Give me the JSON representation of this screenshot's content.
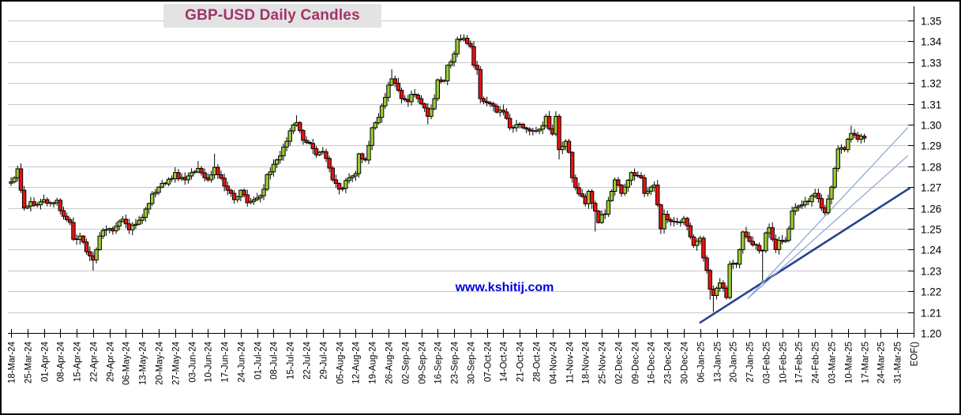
{
  "title": {
    "text": "GBP-USD Daily Candles"
  },
  "watermark": {
    "text": "www.kshitij.com"
  },
  "colors": {
    "title_text": "#A23368",
    "title_bg": "#E3E3E3",
    "watermark_text": "#0000DD",
    "grid": "#C8C8C8",
    "axis": "#000000",
    "bull_fill": "#9ACD32",
    "bear_fill": "#EE1111",
    "candle_border": "#000000",
    "trend_thick": "#27418F",
    "trend_thin": "#8AA3CF"
  },
  "chart_data": {
    "type": "candlestick",
    "title": "GBP-USD Daily Candles",
    "ylabel": "",
    "xlabel": "",
    "grid": "horizontal",
    "y_axis_side": "right",
    "y_range": [
      1.2,
      1.35
    ],
    "y_tick_step": 0.01,
    "y_tick_labels": [
      "1.35",
      "1.34",
      "1.33",
      "1.32",
      "1.31",
      "1.30",
      "1.29",
      "1.28",
      "1.27",
      "1.26",
      "1.25",
      "1.24",
      "1.23",
      "1.22",
      "1.21",
      "1.20"
    ],
    "x_tick_labels": [
      "18-Mar-24",
      "25-Mar-24",
      "01-Apr-24",
      "08-Apr-24",
      "15-Apr-24",
      "22-Apr-24",
      "29-Apr-24",
      "06-May-24",
      "13-May-24",
      "20-May-24",
      "27-May-24",
      "03-Jun-24",
      "10-Jun-24",
      "17-Jun-24",
      "24-Jun-24",
      "01-Jul-24",
      "08-Jul-24",
      "15-Jul-24",
      "22-Jul-24",
      "29-Jul-24",
      "05-Aug-24",
      "12-Aug-24",
      "19-Aug-24",
      "26-Aug-24",
      "02-Sep-24",
      "09-Sep-24",
      "16-Sep-24",
      "23-Sep-24",
      "30-Sep-24",
      "07-Oct-24",
      "14-Oct-24",
      "21-Oct-24",
      "28-Oct-24",
      "04-Nov-24",
      "11-Nov-24",
      "18-Nov-24",
      "25-Nov-24",
      "02-Dec-24",
      "09-Dec-24",
      "16-Dec-24",
      "23-Dec-24",
      "30-Dec-24",
      "06-Jan-25",
      "13-Jan-25",
      "20-Jan-25",
      "27-Jan-25",
      "03-Feb-25",
      "10-Feb-25",
      "17-Feb-25",
      "24-Feb-25",
      "03-Mar-25",
      "10-Mar-25",
      "17-Mar-25",
      "24-Mar-25",
      "31-Mar-25",
      "EOF()"
    ],
    "days_per_week": 5,
    "last_day": 260,
    "price_anchors": [
      [
        0,
        1.2725
      ],
      [
        1,
        1.2745
      ],
      [
        2,
        1.2788
      ],
      [
        3,
        1.2685
      ],
      [
        4,
        1.26
      ],
      [
        6,
        1.263
      ],
      [
        8,
        1.2615
      ],
      [
        10,
        1.264
      ],
      [
        12,
        1.262
      ],
      [
        14,
        1.2637
      ],
      [
        16,
        1.256
      ],
      [
        18,
        1.253
      ],
      [
        19,
        1.245
      ],
      [
        21,
        1.2465
      ],
      [
        23,
        1.239
      ],
      [
        24,
        1.237
      ],
      [
        25,
        1.235
      ],
      [
        26,
        1.24
      ],
      [
        27,
        1.2465
      ],
      [
        29,
        1.2495
      ],
      [
        31,
        1.249
      ],
      [
        33,
        1.2535
      ],
      [
        34,
        1.2546
      ],
      [
        36,
        1.2495
      ],
      [
        38,
        1.2522
      ],
      [
        40,
        1.2555
      ],
      [
        41,
        1.2595
      ],
      [
        43,
        1.2667
      ],
      [
        45,
        1.27
      ],
      [
        47,
        1.2715
      ],
      [
        49,
        1.274
      ],
      [
        50,
        1.277
      ],
      [
        51,
        1.274
      ],
      [
        53,
        1.2735
      ],
      [
        55,
        1.277
      ],
      [
        57,
        1.279
      ],
      [
        59,
        1.2745
      ],
      [
        60,
        1.2735
      ],
      [
        62,
        1.2795
      ],
      [
        63,
        1.276
      ],
      [
        65,
        1.2705
      ],
      [
        66,
        1.2685
      ],
      [
        68,
        1.264
      ],
      [
        70,
        1.2685
      ],
      [
        72,
        1.2625
      ],
      [
        74,
        1.264
      ],
      [
        75,
        1.2648
      ],
      [
        77,
        1.269
      ],
      [
        78,
        1.276
      ],
      [
        80,
        1.281
      ],
      [
        82,
        1.285
      ],
      [
        84,
        1.292
      ],
      [
        85,
        1.297
      ],
      [
        87,
        1.301
      ],
      [
        89,
        1.2925
      ],
      [
        91,
        1.291
      ],
      [
        93,
        1.2855
      ],
      [
        95,
        1.287
      ],
      [
        96,
        1.2838
      ],
      [
        98,
        1.2735
      ],
      [
        100,
        1.269
      ],
      [
        101,
        1.2695
      ],
      [
        103,
        1.2745
      ],
      [
        105,
        1.2765
      ],
      [
        106,
        1.286
      ],
      [
        108,
        1.283
      ],
      [
        110,
        1.2985
      ],
      [
        112,
        1.3035
      ],
      [
        113,
        1.309
      ],
      [
        115,
        1.319
      ],
      [
        116,
        1.322
      ],
      [
        118,
        1.3165
      ],
      [
        119,
        1.3125
      ],
      [
        121,
        1.311
      ],
      [
        122,
        1.3145
      ],
      [
        124,
        1.3125
      ],
      [
        126,
        1.308
      ],
      [
        127,
        1.304
      ],
      [
        129,
        1.3125
      ],
      [
        130,
        1.3215
      ],
      [
        132,
        1.321
      ],
      [
        133,
        1.3285
      ],
      [
        135,
        1.334
      ],
      [
        136,
        1.341
      ],
      [
        138,
        1.3415
      ],
      [
        139,
        1.339
      ],
      [
        140,
        1.3375
      ],
      [
        141,
        1.3285
      ],
      [
        142,
        1.3265
      ],
      [
        143,
        1.3125
      ],
      [
        145,
        1.3105
      ],
      [
        146,
        1.31
      ],
      [
        148,
        1.306
      ],
      [
        149,
        1.307
      ],
      [
        151,
        1.303
      ],
      [
        152,
        1.2985
      ],
      [
        154,
        1.3
      ],
      [
        156,
        1.2985
      ],
      [
        158,
        1.297
      ],
      [
        160,
        1.297
      ],
      [
        162,
        1.2995
      ],
      [
        163,
        1.304
      ],
      [
        164,
        1.298
      ],
      [
        165,
        1.2955
      ],
      [
        166,
        1.304
      ],
      [
        167,
        1.288
      ],
      [
        168,
        1.2895
      ],
      [
        169,
        1.292
      ],
      [
        170,
        1.2867
      ],
      [
        171,
        1.2745
      ],
      [
        173,
        1.2668
      ],
      [
        175,
        1.262
      ],
      [
        176,
        1.268
      ],
      [
        178,
        1.2585
      ],
      [
        179,
        1.253
      ],
      [
        180,
        1.2567
      ],
      [
        181,
        1.257
      ],
      [
        183,
        1.268
      ],
      [
        184,
        1.2735
      ],
      [
        186,
        1.267
      ],
      [
        187,
        1.27
      ],
      [
        189,
        1.277
      ],
      [
        190,
        1.2755
      ],
      [
        192,
        1.2745
      ],
      [
        193,
        1.267
      ],
      [
        195,
        1.27
      ],
      [
        196,
        1.271
      ],
      [
        197,
        1.2615
      ],
      [
        198,
        1.25
      ],
      [
        199,
        1.257
      ],
      [
        201,
        1.2535
      ],
      [
        203,
        1.253
      ],
      [
        205,
        1.255
      ],
      [
        206,
        1.2515
      ],
      [
        208,
        1.242
      ],
      [
        210,
        1.2455
      ],
      [
        211,
        1.236
      ],
      [
        212,
        1.23
      ],
      [
        213,
        1.221
      ],
      [
        214,
        1.218
      ],
      [
        215,
        1.2215
      ],
      [
        216,
        1.224
      ],
      [
        217,
        1.2215
      ],
      [
        218,
        1.217
      ],
      [
        219,
        1.233
      ],
      [
        221,
        1.233
      ],
      [
        222,
        1.24
      ],
      [
        223,
        1.2485
      ],
      [
        225,
        1.244
      ],
      [
        227,
        1.242
      ],
      [
        228,
        1.2395
      ],
      [
        229,
        1.2395
      ],
      [
        230,
        1.248
      ],
      [
        231,
        1.2505
      ],
      [
        232,
        1.245
      ],
      [
        233,
        1.24
      ],
      [
        234,
        1.2445
      ],
      [
        236,
        1.2445
      ],
      [
        237,
        1.25
      ],
      [
        238,
        1.2585
      ],
      [
        240,
        1.261
      ],
      [
        241,
        1.2615
      ],
      [
        243,
        1.263
      ],
      [
        245,
        1.267
      ],
      [
        246,
        1.2645
      ],
      [
        247,
        1.26
      ],
      [
        248,
        1.2577
      ],
      [
        250,
        1.27
      ],
      [
        251,
        1.279
      ],
      [
        252,
        1.2883
      ],
      [
        253,
        1.289
      ],
      [
        254,
        1.288
      ],
      [
        255,
        1.293
      ],
      [
        256,
        1.2958
      ],
      [
        257,
        1.295
      ],
      [
        258,
        1.293
      ],
      [
        259,
        1.2945
      ],
      [
        260,
        1.2935
      ]
    ],
    "wick_overrides": {
      "2": {
        "h": 1.2803
      },
      "25": {
        "l": 1.2299
      },
      "57": {
        "h": 1.2825
      },
      "62": {
        "h": 1.286
      },
      "87": {
        "h": 1.3045
      },
      "100": {
        "l": 1.2665
      },
      "116": {
        "h": 1.3266
      },
      "127": {
        "l": 1.3002
      },
      "138": {
        "h": 1.3434
      },
      "167": {
        "l": 1.2833
      },
      "178": {
        "l": 1.2487
      },
      "198": {
        "l": 1.2475
      },
      "213": {
        "l": 1.216
      },
      "214": {
        "l": 1.21
      },
      "218": {
        "l": 1.216
      },
      "229": {
        "l": 1.2249
      },
      "256": {
        "h": 1.2995
      }
    },
    "trend_lines": [
      {
        "name": "main-support-trendline",
        "from_day": 210,
        "from_price": 1.205,
        "to_day": 273.8,
        "to_price": 1.2695,
        "width": 2.6,
        "color": "#27418F"
      },
      {
        "name": "fan-trendline-upper",
        "from_day": 224.5,
        "from_price": 1.2165,
        "to_day": 273.2,
        "to_price": 1.2985,
        "width": 1.2,
        "color": "#8AA3CF"
      },
      {
        "name": "fan-trendline-lower",
        "from_day": 224.5,
        "from_price": 1.2165,
        "to_day": 273.2,
        "to_price": 1.285,
        "width": 1.2,
        "color": "#8AA3CF"
      }
    ]
  }
}
